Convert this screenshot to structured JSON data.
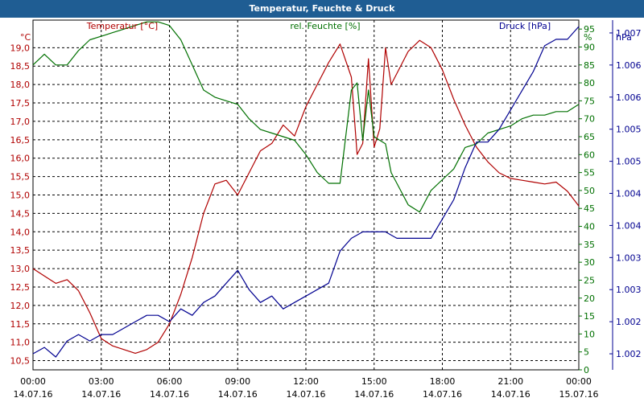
{
  "chart_data": {
    "type": "line",
    "title": "Temperatur, Feuchte & Druck",
    "x_ticks": [
      {
        "time": "00:00",
        "date": "14.07.16"
      },
      {
        "time": "03:00",
        "date": "14.07.16"
      },
      {
        "time": "06:00",
        "date": "14.07.16"
      },
      {
        "time": "09:00",
        "date": "14.07.16"
      },
      {
        "time": "12:00",
        "date": "14.07.16"
      },
      {
        "time": "15:00",
        "date": "14.07.16"
      },
      {
        "time": "18:00",
        "date": "14.07.16"
      },
      {
        "time": "21:00",
        "date": "14.07.16"
      },
      {
        "time": "00:00",
        "date": "15.07.16"
      }
    ],
    "x_range_hours": [
      0,
      24
    ],
    "grid": true,
    "axes": {
      "temp": {
        "header": "Temperatur [°C]",
        "unit": "°C",
        "color": "#b00000",
        "ylim": [
          10.25,
          19.75
        ],
        "ticks": [
          "10,5",
          "11,0",
          "11,5",
          "12,0",
          "12,5",
          "13,0",
          "13,5",
          "14,0",
          "14,5",
          "15,0",
          "15,5",
          "16,0",
          "16,5",
          "17,0",
          "17,5",
          "18,0",
          "18,5",
          "19,0"
        ]
      },
      "hum": {
        "header": "rel. Feuchte [%]",
        "unit": "%",
        "color": "#007000",
        "ylim": [
          0,
          97.5
        ],
        "ticks": [
          "0",
          "5",
          "10",
          "15",
          "20",
          "25",
          "30",
          "35",
          "40",
          "45",
          "50",
          "55",
          "60",
          "65",
          "70",
          "75",
          "80",
          "85",
          "90",
          "95"
        ]
      },
      "press": {
        "header": "Druck [hPa]",
        "unit": "hPa",
        "color": "#000090",
        "ylim": [
          1001.75,
          1007.2
        ],
        "ticks": [
          "1.002",
          "1.002",
          "1.003",
          "1.003",
          "1.004",
          "1.004",
          "1.005",
          "1.005",
          "1.006",
          "1.006",
          "1.007",
          "1.007"
        ]
      }
    },
    "series": [
      {
        "name": "Temperatur [°C]",
        "axis": "temp",
        "color": "#b00000",
        "x": [
          0,
          0.5,
          1,
          1.5,
          2,
          2.5,
          3,
          3.5,
          4,
          4.5,
          5,
          5.5,
          6,
          6.5,
          7,
          7.5,
          8,
          8.5,
          9,
          9.5,
          10,
          10.5,
          11,
          11.5,
          12,
          12.5,
          13,
          13.5,
          14,
          14.25,
          14.5,
          14.75,
          15,
          15.25,
          15.5,
          15.75,
          16,
          16.5,
          17,
          17.5,
          18,
          18.5,
          19,
          19.5,
          20,
          20.5,
          21,
          21.5,
          22,
          22.5,
          23,
          23.5,
          24
        ],
        "y": [
          13.0,
          12.8,
          12.6,
          12.7,
          12.4,
          11.8,
          11.1,
          10.9,
          10.8,
          10.7,
          10.8,
          11.0,
          11.5,
          12.3,
          13.3,
          14.5,
          15.3,
          15.4,
          15.0,
          15.6,
          16.2,
          16.4,
          16.9,
          16.6,
          17.4,
          18.0,
          18.6,
          19.1,
          18.2,
          16.1,
          16.4,
          18.7,
          16.3,
          16.8,
          19.0,
          18.0,
          18.3,
          18.9,
          19.2,
          19.0,
          18.4,
          17.6,
          16.9,
          16.3,
          15.9,
          15.6,
          15.45,
          15.4,
          15.35,
          15.3,
          15.35,
          15.1,
          14.7
        ]
      },
      {
        "name": "rel. Feuchte [%]",
        "axis": "hum",
        "color": "#007000",
        "x": [
          0,
          0.5,
          1,
          1.5,
          2,
          2.5,
          3,
          3.5,
          4,
          4.5,
          5,
          5.5,
          6,
          6.5,
          7,
          7.5,
          8,
          8.5,
          9,
          9.5,
          10,
          10.5,
          11,
          11.5,
          12,
          12.5,
          13,
          13.5,
          14,
          14.25,
          14.5,
          14.75,
          15,
          15.25,
          15.5,
          15.75,
          16,
          16.5,
          17,
          17.5,
          18,
          18.5,
          19,
          19.5,
          20,
          20.5,
          21,
          21.5,
          22,
          22.5,
          23,
          23.5,
          24
        ],
        "y": [
          85,
          88,
          85,
          85,
          89,
          92,
          93,
          94,
          95,
          96,
          97,
          97,
          96,
          92,
          85,
          78,
          76,
          75,
          74,
          70,
          67,
          66,
          65,
          64,
          60,
          55,
          52,
          52,
          78,
          80,
          64,
          78,
          65,
          64,
          63,
          55,
          52,
          46,
          44,
          50,
          53,
          56,
          62,
          63,
          66,
          67,
          68,
          70,
          71,
          71,
          72,
          72,
          74
        ]
      },
      {
        "name": "Druck [hPa]",
        "axis": "press",
        "color": "#000090",
        "x": [
          0,
          0.5,
          1,
          1.5,
          2,
          2.5,
          3,
          3.5,
          4,
          4.5,
          5,
          5.5,
          6,
          6.5,
          7,
          7.5,
          8,
          8.5,
          9,
          9.5,
          10,
          10.5,
          11,
          11.5,
          12,
          12.5,
          13,
          13.5,
          14,
          14.5,
          15,
          15.5,
          16,
          16.5,
          17,
          17.5,
          18,
          18.5,
          19,
          19.5,
          20,
          20.5,
          21,
          21.5,
          22,
          22.5,
          23,
          23.5,
          24
        ],
        "y": [
          1002.0,
          1002.1,
          1001.95,
          1002.2,
          1002.3,
          1002.2,
          1002.3,
          1002.3,
          1002.4,
          1002.5,
          1002.6,
          1002.6,
          1002.5,
          1002.7,
          1002.6,
          1002.8,
          1002.9,
          1003.1,
          1003.3,
          1003.0,
          1002.8,
          1002.9,
          1002.7,
          1002.8,
          1002.9,
          1003.0,
          1003.1,
          1003.6,
          1003.8,
          1003.9,
          1003.9,
          1003.9,
          1003.8,
          1003.8,
          1003.8,
          1003.8,
          1004.1,
          1004.4,
          1004.9,
          1005.3,
          1005.3,
          1005.5,
          1005.8,
          1006.1,
          1006.4,
          1006.8,
          1006.9,
          1006.9,
          1007.1
        ]
      }
    ]
  }
}
